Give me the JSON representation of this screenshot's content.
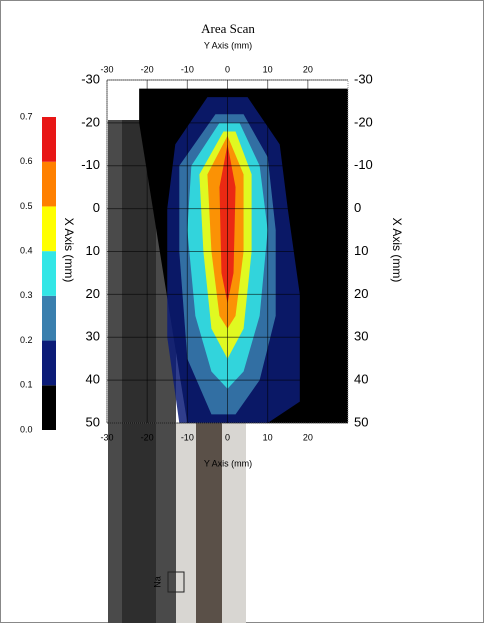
{
  "chart_data": {
    "type": "contour",
    "title": "Area Scan",
    "x_label": "Y Axis (mm)",
    "y_label": "X Axis (mm)",
    "xlim": [
      -30,
      30
    ],
    "xticks": [
      -30,
      -20,
      -10,
      0,
      10,
      20
    ],
    "ylim": [
      -30,
      50
    ],
    "yticks": [
      -30,
      -20,
      -10,
      0,
      10,
      20,
      30,
      40,
      50
    ],
    "levels": [
      {
        "value": 0,
        "label": "0.0"
      },
      0.1,
      0.2,
      0.3,
      0.4,
      0.5,
      0.6,
      0.7
    ],
    "colors": [
      "#000000",
      "#0c1c78",
      "#3a7fae",
      "#33e6e6",
      "#ffff00",
      "#ff8000",
      "#e81616"
    ],
    "grid": true,
    "photo_label": "Na"
  }
}
